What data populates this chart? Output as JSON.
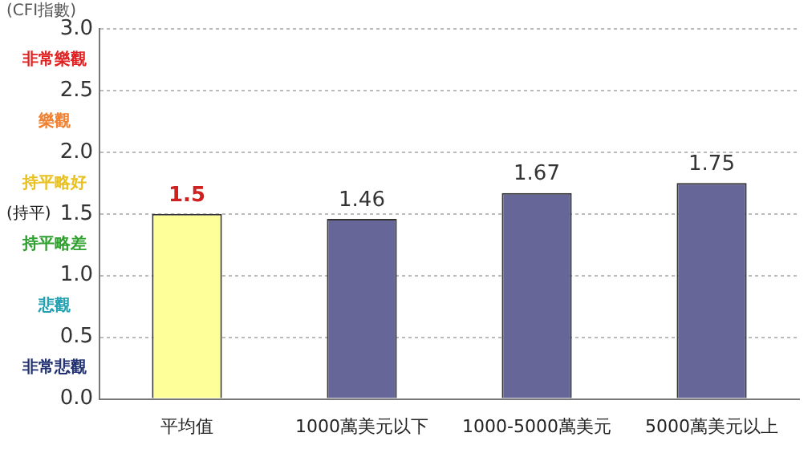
{
  "chart_data": {
    "type": "bar",
    "ylabel": "(CFI指數)",
    "categories": [
      "平均值",
      "1000萬美元以下",
      "1000-5000萬美元",
      "5000萬美元以上"
    ],
    "values": [
      1.5,
      1.46,
      1.67,
      1.75
    ],
    "colors": [
      "#ffff99",
      "#666699",
      "#666699",
      "#666699"
    ],
    "ylim": [
      0,
      3
    ],
    "yticks": [
      {
        "value": 0,
        "label": "0.0"
      },
      0.5,
      {
        "value": 1,
        "label": "1.0"
      },
      1.5,
      {
        "value": 2,
        "label": "2.0"
      },
      2.5,
      {
        "value": 3,
        "label": "3.0"
      }
    ],
    "grid": "y",
    "legend": false,
    "data_labels": true,
    "annotations": [
      "非常樂觀",
      "樂觀",
      "持平略好",
      "(持平)",
      "持平略差",
      "悲觀",
      "非常悲觀"
    ]
  }
}
